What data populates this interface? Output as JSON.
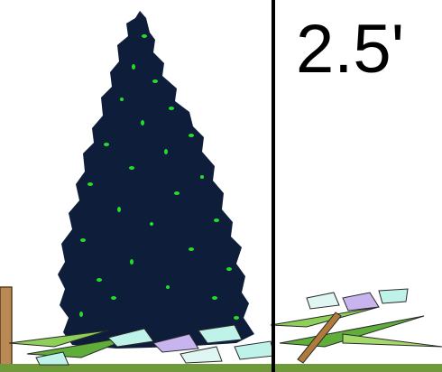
{
  "label": "2.5'"
}
